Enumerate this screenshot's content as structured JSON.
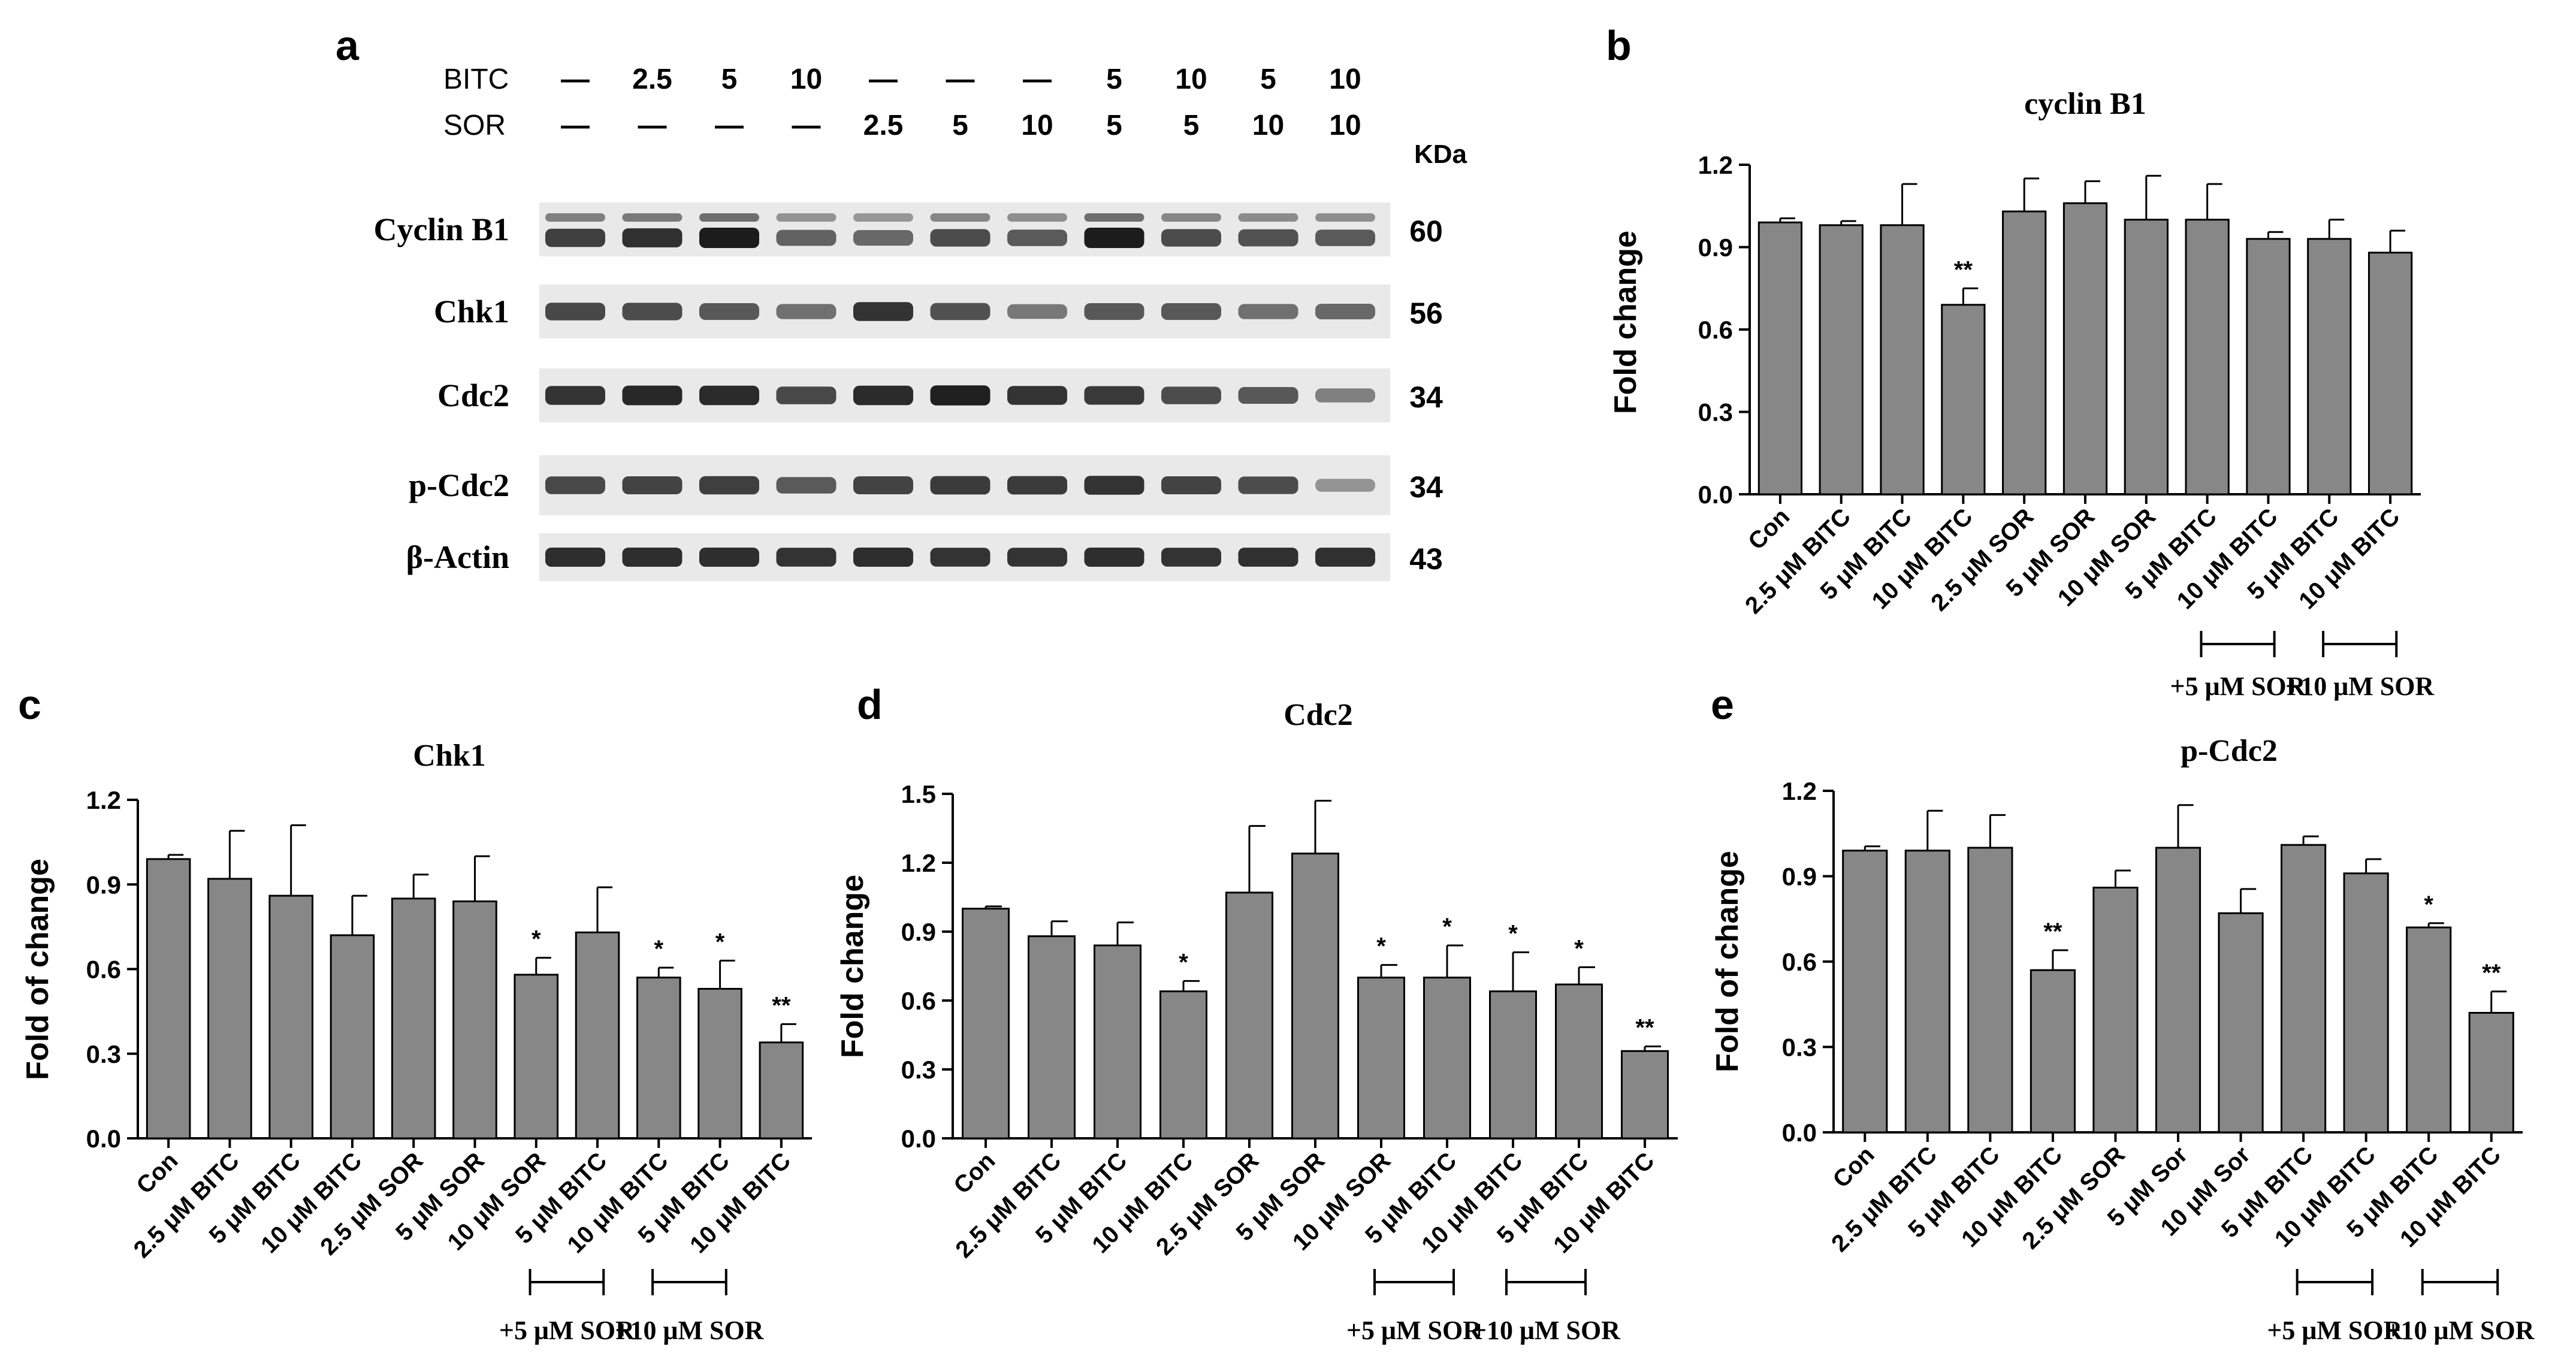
{
  "colors": {
    "bar": "#878787",
    "bar_edge": "#000000",
    "blot_bg": "#e9e9e9",
    "band": "#1c1c1c"
  },
  "panel_a": {
    "letter": "a",
    "row_labels": [
      "BITC",
      "SOR"
    ],
    "bitc": [
      "—",
      "2.5",
      "5",
      "10",
      "—",
      "—",
      "—",
      "5",
      "10",
      "5",
      "10"
    ],
    "sor": [
      "—",
      "—",
      "—",
      "—",
      "2.5",
      "5",
      "10",
      "5",
      "5",
      "10",
      "10"
    ],
    "kda_label": "KDa",
    "blots": [
      {
        "label": "Cyclin B1",
        "kda": "60",
        "intensity": [
          0.78,
          0.86,
          1.0,
          0.55,
          0.5,
          0.7,
          0.6,
          1.0,
          0.7,
          0.65,
          0.6
        ]
      },
      {
        "label": "Chk1",
        "kda": "56",
        "intensity": [
          0.72,
          0.7,
          0.62,
          0.45,
          0.85,
          0.65,
          0.4,
          0.62,
          0.62,
          0.45,
          0.5
        ]
      },
      {
        "label": "Cdc2",
        "kda": "34",
        "intensity": [
          0.85,
          0.92,
          0.9,
          0.72,
          0.9,
          0.97,
          0.85,
          0.82,
          0.7,
          0.62,
          0.35
        ]
      },
      {
        "label": "p-Cdc2",
        "kda": "34",
        "intensity": [
          0.72,
          0.75,
          0.78,
          0.6,
          0.75,
          0.8,
          0.8,
          0.85,
          0.75,
          0.7,
          0.22
        ]
      },
      {
        "label": "β-Actin",
        "kda": "43",
        "intensity": [
          0.88,
          0.88,
          0.88,
          0.85,
          0.88,
          0.85,
          0.85,
          0.88,
          0.85,
          0.86,
          0.86
        ]
      }
    ]
  },
  "chart_data": [
    {
      "panel": "b",
      "type": "bar",
      "title": "cyclin B1",
      "ylabel": "Fold change",
      "ylim": [
        0,
        1.2
      ],
      "yticks": [
        "0.0",
        "0.3",
        "0.6",
        "0.9",
        "1.2"
      ],
      "categories": [
        "Con",
        "2.5 μM BITC",
        "5 μM BITC",
        "10 μM BITC",
        "2.5 μM SOR",
        "5 μM SOR",
        "10 μM SOR",
        "5 μM BITC",
        "10 μM BITC",
        "5 μM BITC",
        "10 μM BITC"
      ],
      "values": [
        0.99,
        0.98,
        0.98,
        0.69,
        1.03,
        1.06,
        1.0,
        1.0,
        0.93,
        0.93,
        0.88
      ],
      "errors": [
        0.015,
        0.015,
        0.15,
        0.06,
        0.12,
        0.08,
        0.16,
        0.13,
        0.025,
        0.07,
        0.08
      ],
      "annotations": [
        "",
        "",
        "",
        "**",
        "",
        "",
        "",
        "",
        "",
        "",
        ""
      ],
      "groups": [
        {
          "label": "+5 μM SOR",
          "from": 7,
          "to": 8
        },
        {
          "label": "+10 μM SOR",
          "from": 9,
          "to": 10
        }
      ]
    },
    {
      "panel": "c",
      "type": "bar",
      "title": "Chk1",
      "ylabel": "Fold of change",
      "ylim": [
        0,
        1.2
      ],
      "yticks": [
        "0.0",
        "0.3",
        "0.6",
        "0.9",
        "1.2"
      ],
      "categories": [
        "Con",
        "2.5 μM BITC",
        "5 μM BITC",
        "10 μM BITC",
        "2.5 μM SOR",
        "5 μM SOR",
        "10 μM SOR",
        "5 μM BITC",
        "10 μM BITC",
        "5 μM BITC",
        "10 μM BITC"
      ],
      "values": [
        0.99,
        0.92,
        0.86,
        0.72,
        0.85,
        0.84,
        0.58,
        0.73,
        0.57,
        0.53,
        0.34
      ],
      "errors": [
        0.015,
        0.17,
        0.25,
        0.14,
        0.085,
        0.16,
        0.06,
        0.16,
        0.035,
        0.1,
        0.065
      ],
      "annotations": [
        "",
        "",
        "",
        "",
        "",
        "",
        "*",
        "",
        "*",
        "*",
        "**"
      ],
      "groups": [
        {
          "label": "+5 μM SOR",
          "from": 6,
          "to": 7
        },
        {
          "label": "+10 μM SOR",
          "from": 8,
          "to": 9
        }
      ]
    },
    {
      "panel": "d",
      "type": "bar",
      "title": "Cdc2",
      "ylabel": "Fold change",
      "ylim": [
        0,
        1.5
      ],
      "yticks": [
        "0.0",
        "0.3",
        "0.6",
        "0.9",
        "1.2",
        "1.5"
      ],
      "categories": [
        "Con",
        "2.5 μM BITC",
        "5 μM BITC",
        "10 μM BITC",
        "2.5 μM SOR",
        "5 μM SOR",
        "10 μM SOR",
        "5 μM BITC",
        "10 μM BITC",
        "5 μM BITC",
        "10 μM BITC"
      ],
      "values": [
        1.0,
        0.88,
        0.84,
        0.64,
        1.07,
        1.24,
        0.7,
        0.7,
        0.64,
        0.67,
        0.38
      ],
      "errors": [
        0.01,
        0.065,
        0.1,
        0.045,
        0.29,
        0.23,
        0.055,
        0.14,
        0.17,
        0.075,
        0.02
      ],
      "annotations": [
        "",
        "",
        "",
        "*",
        "",
        "",
        "*",
        "*",
        "*",
        "*",
        "**"
      ],
      "groups": [
        {
          "label": "+5 μM SOR",
          "from": 6,
          "to": 7
        },
        {
          "label": "+10 μM SOR",
          "from": 8,
          "to": 9
        }
      ]
    },
    {
      "panel": "e",
      "type": "bar",
      "title": "p-Cdc2",
      "ylabel": "Fold of change",
      "ylim": [
        0,
        1.2
      ],
      "yticks": [
        "0.0",
        "0.3",
        "0.6",
        "0.9",
        "1.2"
      ],
      "categories": [
        "Con",
        "2.5 μM BITC",
        "5 μM BITC",
        "10 μM BITC",
        "2.5 μM SOR",
        "5 μM Sor",
        "10 μM Sor",
        "5 μM BITC",
        "10 μM BITC",
        "5 μM BITC",
        "10 μM BITC"
      ],
      "values": [
        0.99,
        0.99,
        1.0,
        0.57,
        0.86,
        1.0,
        0.77,
        1.01,
        0.91,
        0.72,
        0.42
      ],
      "errors": [
        0.015,
        0.14,
        0.115,
        0.07,
        0.06,
        0.15,
        0.085,
        0.03,
        0.05,
        0.015,
        0.075
      ],
      "annotations": [
        "",
        "",
        "",
        "**",
        "",
        "",
        "",
        "",
        "",
        "*",
        "**"
      ],
      "groups": [
        {
          "label": "+5 μM SOR",
          "from": 7,
          "to": 8
        },
        {
          "label": "+10 μM SOR",
          "from": 9,
          "to": 10
        }
      ]
    }
  ]
}
